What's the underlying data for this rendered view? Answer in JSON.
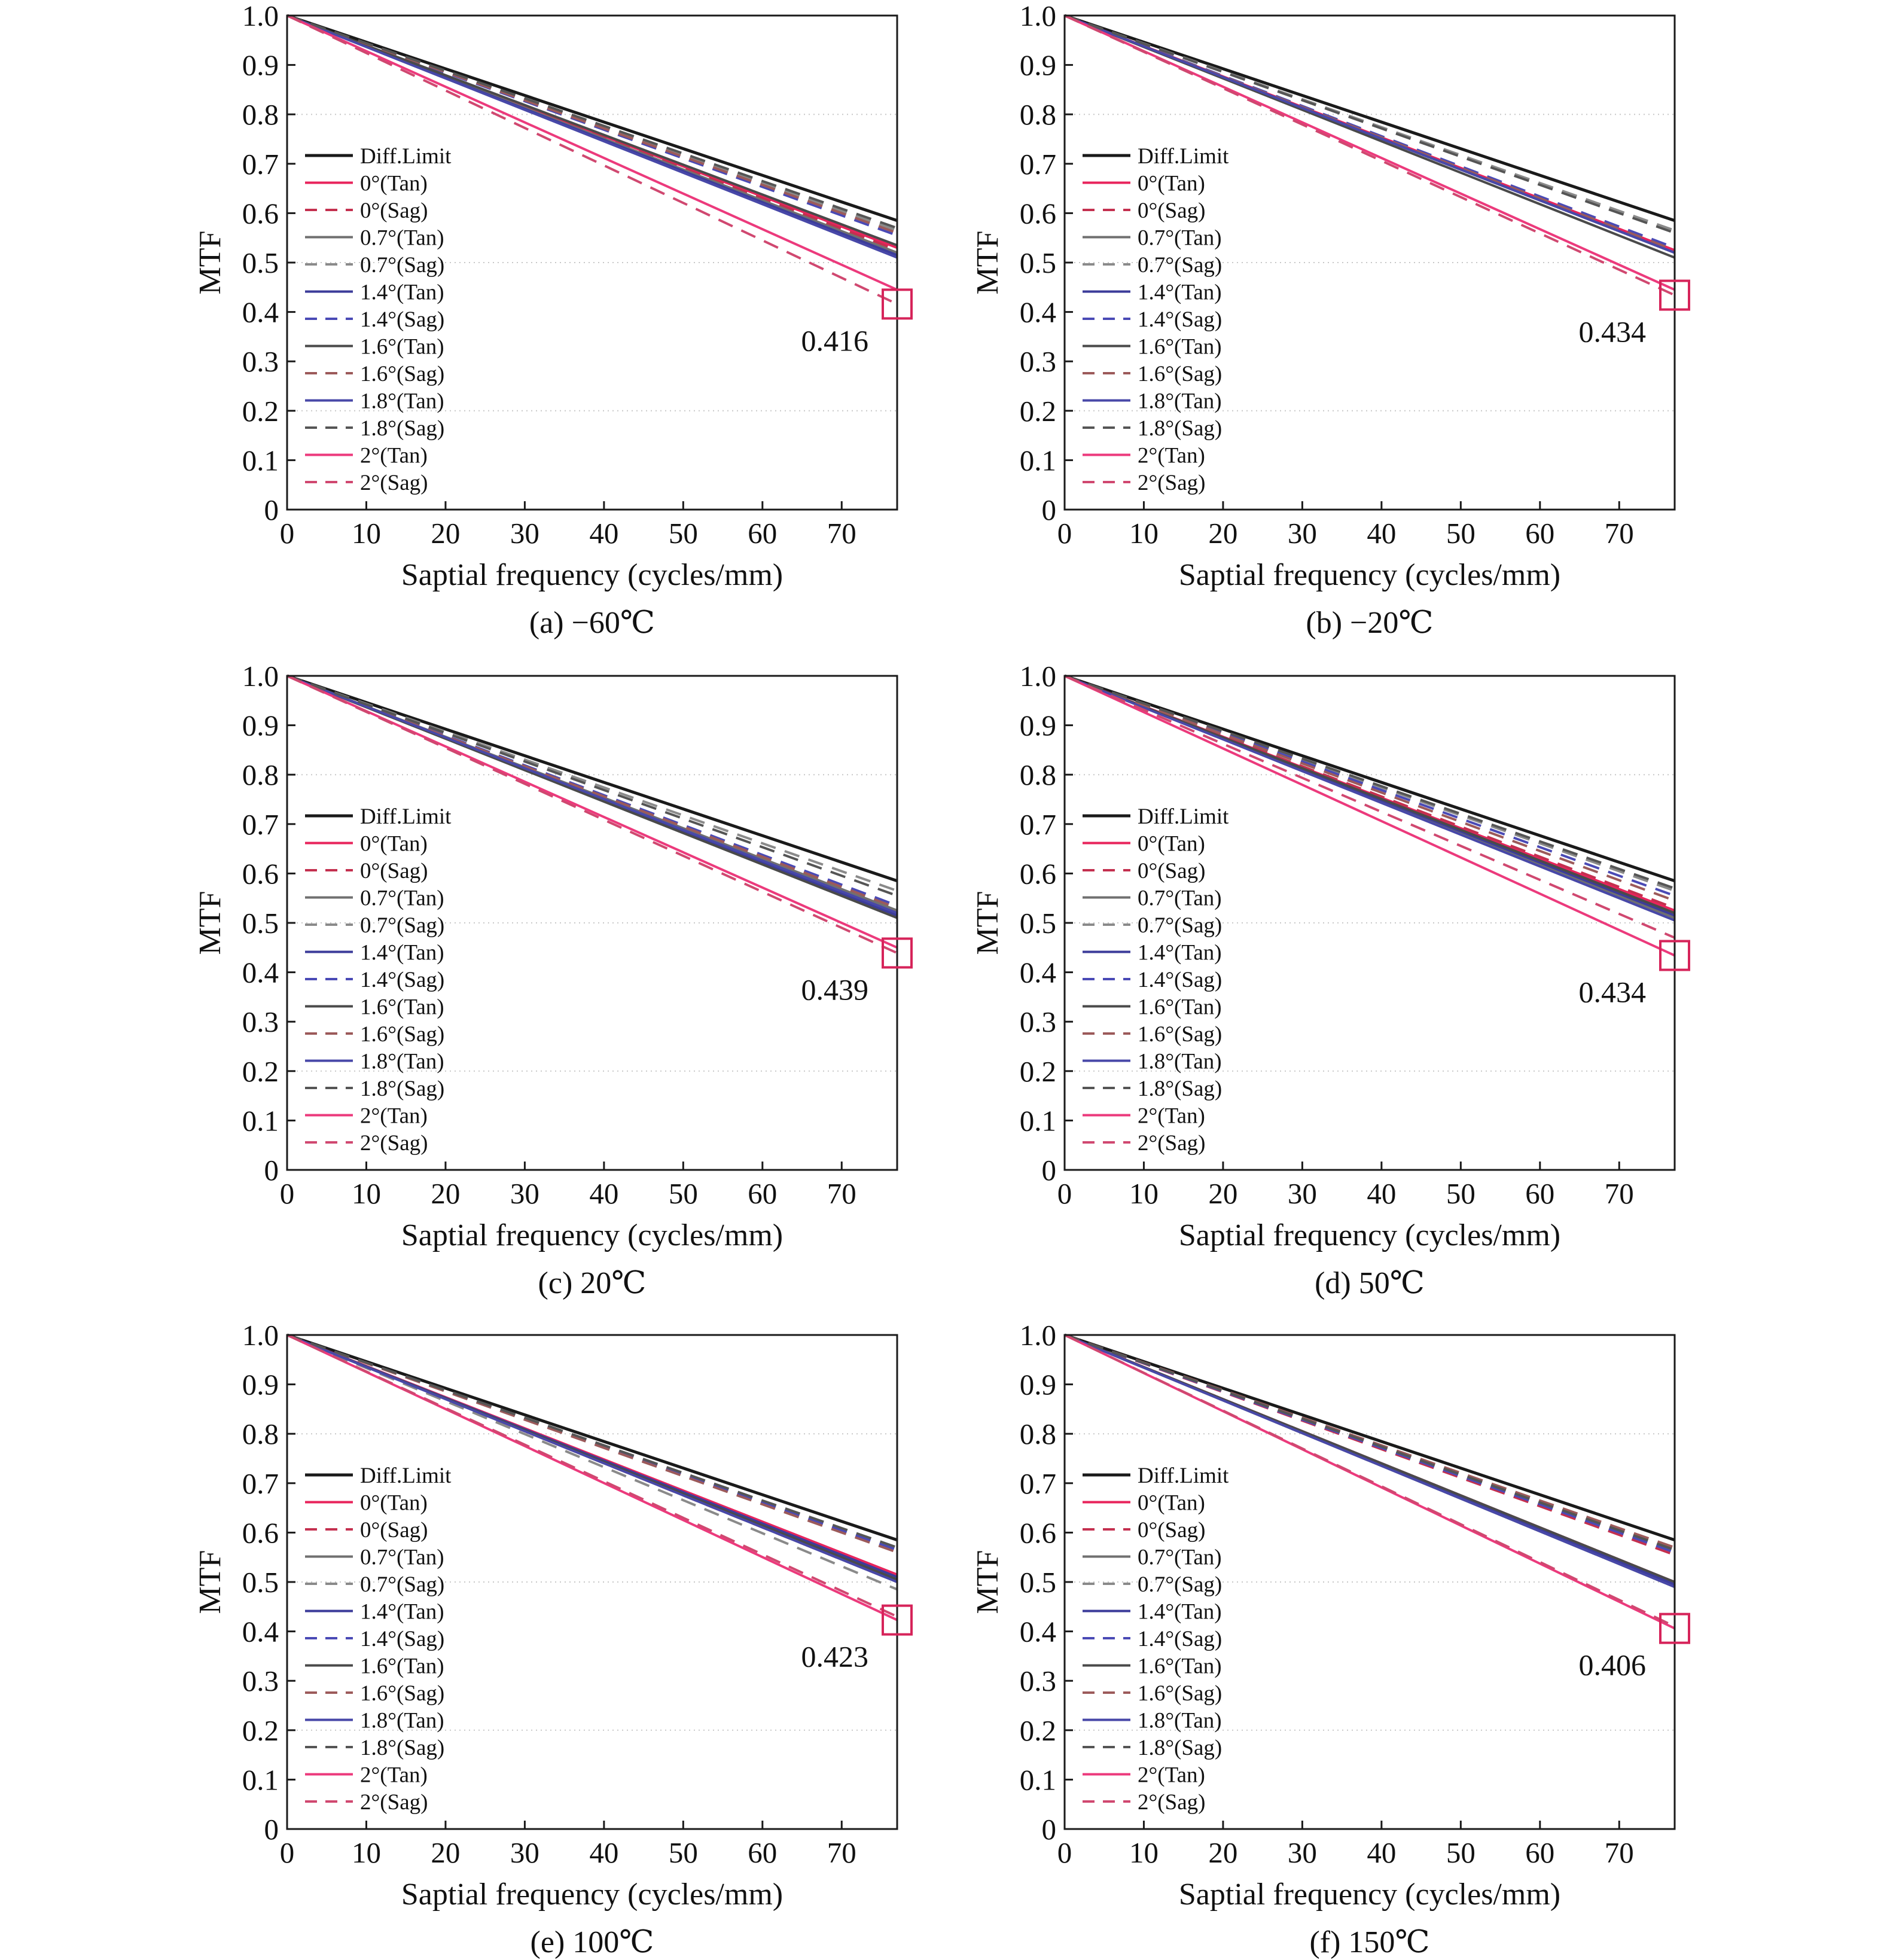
{
  "figure": {
    "series_styles": [
      {
        "name": "Diff.Limit",
        "color": "#1a1a1a",
        "dash": false
      },
      {
        "name": "0°(Tan)",
        "color": "#e8245c",
        "dash": false
      },
      {
        "name": "0°(Sag)",
        "color": "#c4304f",
        "dash": true
      },
      {
        "name": "0.7°(Tan)",
        "color": "#707070",
        "dash": false
      },
      {
        "name": "0.7°(Sag)",
        "color": "#8a8a8a",
        "dash": true
      },
      {
        "name": "1.4°(Tan)",
        "color": "#3c3c9a",
        "dash": false
      },
      {
        "name": "1.4°(Sag)",
        "color": "#4a4ab5",
        "dash": true
      },
      {
        "name": "1.6°(Tan)",
        "color": "#4a4a4a",
        "dash": false
      },
      {
        "name": "1.6°(Sag)",
        "color": "#9c5a5a",
        "dash": true
      },
      {
        "name": "1.8°(Tan)",
        "color": "#4848a8",
        "dash": false
      },
      {
        "name": "1.8°(Sag)",
        "color": "#555555",
        "dash": true
      },
      {
        "name": "2°(Tan)",
        "color": "#ec3a7c",
        "dash": false
      },
      {
        "name": "2°(Sag)",
        "color": "#d04870",
        "dash": true
      }
    ],
    "marker_color": "#d6245a"
  },
  "chart_data": [
    {
      "type": "line",
      "caption": "(a) −60℃",
      "xlabel": "Saptial frequency (cycles/mm)",
      "ylabel": "MTF",
      "xlim": [
        0,
        77
      ],
      "ylim": [
        0,
        1.0
      ],
      "xticks": [
        "0",
        "10",
        "20",
        "30",
        "40",
        "50",
        "60",
        "70"
      ],
      "yticks": [
        "0",
        "0.1",
        "0.2",
        "0.3",
        "0.4",
        "0.5",
        "0.6",
        "0.7",
        "0.8",
        "0.9",
        "1.0"
      ],
      "legend_position": "center-left",
      "x": [
        0,
        77
      ],
      "series": [
        {
          "name": "Diff.Limit",
          "values": [
            1.0,
            0.585
          ]
        },
        {
          "name": "0°(Tan)",
          "values": [
            1.0,
            0.53
          ]
        },
        {
          "name": "0°(Sag)",
          "values": [
            1.0,
            0.525
          ]
        },
        {
          "name": "0.7°(Tan)",
          "values": [
            1.0,
            0.52
          ]
        },
        {
          "name": "0.7°(Sag)",
          "values": [
            1.0,
            0.565
          ]
        },
        {
          "name": "1.4°(Tan)",
          "values": [
            1.0,
            0.515
          ]
        },
        {
          "name": "1.4°(Sag)",
          "values": [
            1.0,
            0.555
          ]
        },
        {
          "name": "1.6°(Tan)",
          "values": [
            1.0,
            0.535
          ]
        },
        {
          "name": "1.6°(Sag)",
          "values": [
            1.0,
            0.56
          ]
        },
        {
          "name": "1.8°(Tan)",
          "values": [
            1.0,
            0.51
          ]
        },
        {
          "name": "1.8°(Sag)",
          "values": [
            1.0,
            0.57
          ]
        },
        {
          "name": "2°(Tan)",
          "values": [
            1.0,
            0.445
          ]
        },
        {
          "name": "2°(Sag)",
          "values": [
            1.0,
            0.416
          ]
        }
      ],
      "annotation": {
        "text": "0.416",
        "x": 77,
        "y": 0.416
      }
    },
    {
      "type": "line",
      "caption": "(b) −20℃",
      "xlabel": "Saptial frequency (cycles/mm)",
      "ylabel": "MTF",
      "xlim": [
        0,
        77
      ],
      "ylim": [
        0,
        1.0
      ],
      "xticks": [
        "0",
        "10",
        "20",
        "30",
        "40",
        "50",
        "60",
        "70"
      ],
      "yticks": [
        "0",
        "0.1",
        "0.2",
        "0.3",
        "0.4",
        "0.5",
        "0.6",
        "0.7",
        "0.8",
        "0.9",
        "1.0"
      ],
      "legend_position": "center-left",
      "x": [
        0,
        77
      ],
      "series": [
        {
          "name": "Diff.Limit",
          "values": [
            1.0,
            0.585
          ]
        },
        {
          "name": "0°(Tan)",
          "values": [
            1.0,
            0.525
          ]
        },
        {
          "name": "0°(Sag)",
          "values": [
            1.0,
            0.52
          ]
        },
        {
          "name": "0.7°(Tan)",
          "values": [
            1.0,
            0.52
          ]
        },
        {
          "name": "0.7°(Sag)",
          "values": [
            1.0,
            0.565
          ]
        },
        {
          "name": "1.4°(Tan)",
          "values": [
            1.0,
            0.52
          ]
        },
        {
          "name": "1.4°(Sag)",
          "values": [
            1.0,
            0.53
          ]
        },
        {
          "name": "1.6°(Tan)",
          "values": [
            1.0,
            0.51
          ]
        },
        {
          "name": "1.6°(Sag)",
          "values": [
            1.0,
            0.525
          ]
        },
        {
          "name": "1.8°(Tan)",
          "values": [
            1.0,
            0.52
          ]
        },
        {
          "name": "1.8°(Sag)",
          "values": [
            1.0,
            0.56
          ]
        },
        {
          "name": "2°(Tan)",
          "values": [
            1.0,
            0.445
          ]
        },
        {
          "name": "2°(Sag)",
          "values": [
            1.0,
            0.434
          ]
        }
      ],
      "annotation": {
        "text": "0.434",
        "x": 77,
        "y": 0.434
      }
    },
    {
      "type": "line",
      "caption": "(c) 20℃",
      "xlabel": "Saptial frequency (cycles/mm)",
      "ylabel": "MTF",
      "xlim": [
        0,
        77
      ],
      "ylim": [
        0,
        1.0
      ],
      "xticks": [
        "0",
        "10",
        "20",
        "30",
        "40",
        "50",
        "60",
        "70"
      ],
      "yticks": [
        "0",
        "0.1",
        "0.2",
        "0.3",
        "0.4",
        "0.5",
        "0.6",
        "0.7",
        "0.8",
        "0.9",
        "1.0"
      ],
      "legend_position": "center-left",
      "x": [
        0,
        77
      ],
      "series": [
        {
          "name": "Diff.Limit",
          "values": [
            1.0,
            0.585
          ]
        },
        {
          "name": "0°(Tan)",
          "values": [
            1.0,
            0.52
          ]
        },
        {
          "name": "0°(Sag)",
          "values": [
            1.0,
            0.515
          ]
        },
        {
          "name": "0.7°(Tan)",
          "values": [
            1.0,
            0.525
          ]
        },
        {
          "name": "0.7°(Sag)",
          "values": [
            1.0,
            0.565
          ]
        },
        {
          "name": "1.4°(Tan)",
          "values": [
            1.0,
            0.515
          ]
        },
        {
          "name": "1.4°(Sag)",
          "values": [
            1.0,
            0.535
          ]
        },
        {
          "name": "1.6°(Tan)",
          "values": [
            1.0,
            0.51
          ]
        },
        {
          "name": "1.6°(Sag)",
          "values": [
            1.0,
            0.53
          ]
        },
        {
          "name": "1.8°(Tan)",
          "values": [
            1.0,
            0.52
          ]
        },
        {
          "name": "1.8°(Sag)",
          "values": [
            1.0,
            0.555
          ]
        },
        {
          "name": "2°(Tan)",
          "values": [
            1.0,
            0.45
          ]
        },
        {
          "name": "2°(Sag)",
          "values": [
            1.0,
            0.439
          ]
        }
      ],
      "annotation": {
        "text": "0.439",
        "x": 77,
        "y": 0.439
      }
    },
    {
      "type": "line",
      "caption": "(d) 50℃",
      "xlabel": "Saptial frequency (cycles/mm)",
      "ylabel": "MTF",
      "xlim": [
        0,
        77
      ],
      "ylim": [
        0,
        1.0
      ],
      "xticks": [
        "0",
        "10",
        "20",
        "30",
        "40",
        "50",
        "60",
        "70"
      ],
      "yticks": [
        "0",
        "0.1",
        "0.2",
        "0.3",
        "0.4",
        "0.5",
        "0.6",
        "0.7",
        "0.8",
        "0.9",
        "1.0"
      ],
      "legend_position": "center-left",
      "x": [
        0,
        77
      ],
      "series": [
        {
          "name": "Diff.Limit",
          "values": [
            1.0,
            0.585
          ]
        },
        {
          "name": "0°(Tan)",
          "values": [
            1.0,
            0.525
          ]
        },
        {
          "name": "0°(Sag)",
          "values": [
            1.0,
            0.53
          ]
        },
        {
          "name": "0.7°(Tan)",
          "values": [
            1.0,
            0.51
          ]
        },
        {
          "name": "0.7°(Sag)",
          "values": [
            1.0,
            0.565
          ]
        },
        {
          "name": "1.4°(Tan)",
          "values": [
            1.0,
            0.515
          ]
        },
        {
          "name": "1.4°(Sag)",
          "values": [
            1.0,
            0.555
          ]
        },
        {
          "name": "1.6°(Tan)",
          "values": [
            1.0,
            0.52
          ]
        },
        {
          "name": "1.6°(Sag)",
          "values": [
            1.0,
            0.545
          ]
        },
        {
          "name": "1.8°(Tan)",
          "values": [
            1.0,
            0.505
          ]
        },
        {
          "name": "1.8°(Sag)",
          "values": [
            1.0,
            0.57
          ]
        },
        {
          "name": "2°(Tan)",
          "values": [
            1.0,
            0.434
          ]
        },
        {
          "name": "2°(Sag)",
          "values": [
            1.0,
            0.47
          ]
        }
      ],
      "annotation": {
        "text": "0.434",
        "x": 77,
        "y": 0.434
      }
    },
    {
      "type": "line",
      "caption": "(e) 100℃",
      "xlabel": "Saptial frequency (cycles/mm)",
      "ylabel": "MTF",
      "xlim": [
        0,
        77
      ],
      "ylim": [
        0,
        1.0
      ],
      "xticks": [
        "0",
        "10",
        "20",
        "30",
        "40",
        "50",
        "60",
        "70"
      ],
      "yticks": [
        "0",
        "0.1",
        "0.2",
        "0.3",
        "0.4",
        "0.5",
        "0.6",
        "0.7",
        "0.8",
        "0.9",
        "1.0"
      ],
      "legend_position": "center-left",
      "x": [
        0,
        77
      ],
      "series": [
        {
          "name": "Diff.Limit",
          "values": [
            1.0,
            0.585
          ]
        },
        {
          "name": "0°(Tan)",
          "values": [
            1.0,
            0.515
          ]
        },
        {
          "name": "0°(Sag)",
          "values": [
            1.0,
            0.5
          ]
        },
        {
          "name": "0.7°(Tan)",
          "values": [
            1.0,
            0.505
          ]
        },
        {
          "name": "0.7°(Sag)",
          "values": [
            1.0,
            0.485
          ]
        },
        {
          "name": "1.4°(Tan)",
          "values": [
            1.0,
            0.51
          ]
        },
        {
          "name": "1.4°(Sag)",
          "values": [
            1.0,
            0.565
          ]
        },
        {
          "name": "1.6°(Tan)",
          "values": [
            1.0,
            0.505
          ]
        },
        {
          "name": "1.6°(Sag)",
          "values": [
            1.0,
            0.56
          ]
        },
        {
          "name": "1.8°(Tan)",
          "values": [
            1.0,
            0.5
          ]
        },
        {
          "name": "1.8°(Sag)",
          "values": [
            1.0,
            0.57
          ]
        },
        {
          "name": "2°(Tan)",
          "values": [
            1.0,
            0.423
          ]
        },
        {
          "name": "2°(Sag)",
          "values": [
            1.0,
            0.43
          ]
        }
      ],
      "annotation": {
        "text": "0.423",
        "x": 77,
        "y": 0.423
      }
    },
    {
      "type": "line",
      "caption": "(f) 150℃",
      "xlabel": "Saptial frequency (cycles/mm)",
      "ylabel": "MTF",
      "xlim": [
        0,
        77
      ],
      "ylim": [
        0,
        1.0
      ],
      "xticks": [
        "0",
        "10",
        "20",
        "30",
        "40",
        "50",
        "60",
        "70"
      ],
      "yticks": [
        "0",
        "0.1",
        "0.2",
        "0.3",
        "0.4",
        "0.5",
        "0.6",
        "0.7",
        "0.8",
        "0.9",
        "1.0"
      ],
      "legend_position": "center-left",
      "x": [
        0,
        77
      ],
      "series": [
        {
          "name": "Diff.Limit",
          "values": [
            1.0,
            0.585
          ]
        },
        {
          "name": "0°(Tan)",
          "values": [
            1.0,
            0.5
          ]
        },
        {
          "name": "0°(Sag)",
          "values": [
            1.0,
            0.555
          ]
        },
        {
          "name": "0.7°(Tan)",
          "values": [
            1.0,
            0.49
          ]
        },
        {
          "name": "0.7°(Sag)",
          "values": [
            1.0,
            0.565
          ]
        },
        {
          "name": "1.4°(Tan)",
          "values": [
            1.0,
            0.495
          ]
        },
        {
          "name": "1.4°(Sag)",
          "values": [
            1.0,
            0.56
          ]
        },
        {
          "name": "1.6°(Tan)",
          "values": [
            1.0,
            0.5
          ]
        },
        {
          "name": "1.6°(Sag)",
          "values": [
            1.0,
            0.57
          ]
        },
        {
          "name": "1.8°(Tan)",
          "values": [
            1.0,
            0.49
          ]
        },
        {
          "name": "1.8°(Sag)",
          "values": [
            1.0,
            0.565
          ]
        },
        {
          "name": "2°(Tan)",
          "values": [
            1.0,
            0.406
          ]
        },
        {
          "name": "2°(Sag)",
          "values": [
            1.0,
            0.41
          ]
        }
      ],
      "annotation": {
        "text": "0.406",
        "x": 77,
        "y": 0.406
      }
    }
  ]
}
